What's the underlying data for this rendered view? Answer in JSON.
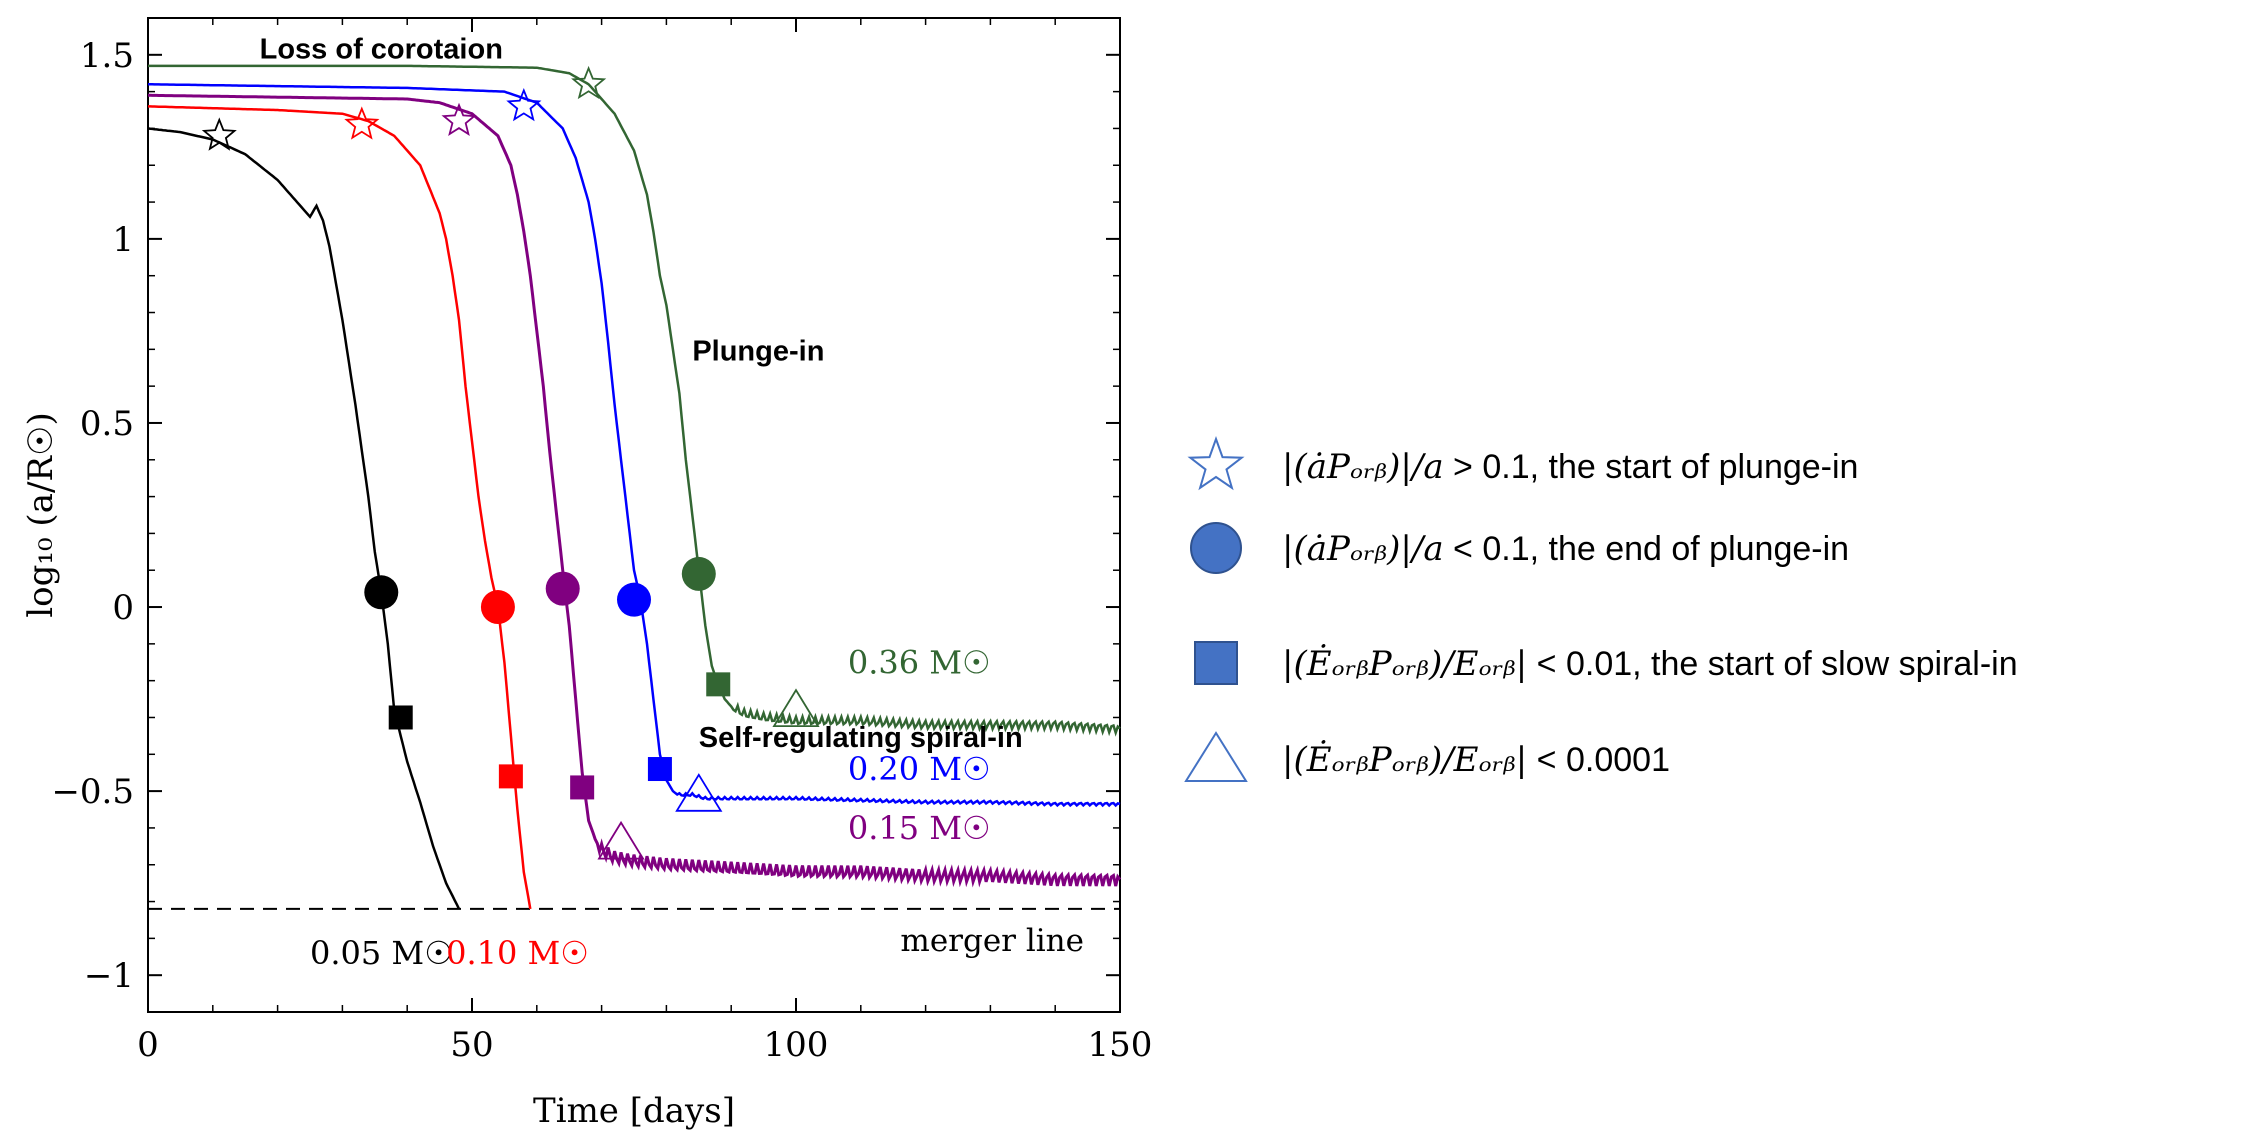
{
  "chart_data": {
    "type": "line",
    "xlabel": "Time [days]",
    "ylabel": "log₁₀ (a/R☉)",
    "xlim": [
      0,
      150
    ],
    "ylim": [
      -1.1,
      1.6
    ],
    "xticks": [
      {
        "v": 0,
        "label": "0"
      },
      {
        "v": 50,
        "label": "50"
      },
      {
        "v": 100,
        "label": "100"
      },
      {
        "v": 150,
        "label": "150"
      }
    ],
    "yticks": [
      {
        "v": 1.5,
        "label": "1.5"
      },
      {
        "v": 1,
        "label": "1"
      },
      {
        "v": 0.5,
        "label": "0.5"
      },
      {
        "v": 0,
        "label": "0"
      },
      {
        "v": -0.5,
        "label": "−0.5"
      },
      {
        "v": -1,
        "label": "−1"
      }
    ],
    "merger_line": {
      "y": -0.82,
      "label": "merger line"
    },
    "annotations": [
      {
        "text": "Loss of corotaion",
        "x": 36,
        "y": 1.49
      },
      {
        "text": "Plunge-in",
        "x": 84,
        "y": 0.67
      },
      {
        "text": "Self-regulating spiral-in",
        "x": 85,
        "y": -0.38
      }
    ],
    "series": [
      {
        "name": "0.05 M☉",
        "color": "#000000",
        "label_x": 25,
        "label_y": -0.97,
        "x": [
          0,
          5,
          10,
          15,
          20,
          24,
          25,
          26,
          27,
          28,
          30,
          32,
          34,
          35,
          36,
          37,
          38,
          40,
          42,
          44,
          46,
          48
        ],
        "y": [
          1.3,
          1.29,
          1.27,
          1.23,
          1.16,
          1.08,
          1.06,
          1.09,
          1.05,
          0.98,
          0.78,
          0.55,
          0.3,
          0.15,
          0.04,
          -0.1,
          -0.28,
          -0.42,
          -0.53,
          -0.65,
          -0.75,
          -0.82
        ],
        "star": [
          11,
          1.28
        ],
        "circle": [
          36,
          0.04
        ],
        "square": [
          39,
          -0.3
        ]
      },
      {
        "name": "0.10 M☉",
        "color": "#ff0000",
        "label_x": 46,
        "label_y": -0.97,
        "x": [
          0,
          10,
          20,
          30,
          34,
          38,
          42,
          45,
          46,
          47,
          48,
          49,
          50,
          51,
          52,
          53,
          54,
          55,
          56,
          57,
          58,
          59
        ],
        "y": [
          1.36,
          1.355,
          1.35,
          1.34,
          1.32,
          1.28,
          1.2,
          1.07,
          1.0,
          0.9,
          0.78,
          0.6,
          0.45,
          0.3,
          0.18,
          0.08,
          0.0,
          -0.15,
          -0.35,
          -0.55,
          -0.72,
          -0.82
        ],
        "star": [
          33,
          1.31
        ],
        "circle": [
          54,
          0.0
        ],
        "square": [
          56,
          -0.46
        ]
      },
      {
        "name": "0.15 M☉",
        "color": "#800080",
        "label_x": 108,
        "label_y": -0.63,
        "x": [
          0,
          20,
          40,
          45,
          50,
          54,
          56,
          57,
          58,
          59,
          60,
          61,
          62,
          63,
          64,
          65,
          66,
          67,
          68,
          69,
          70,
          72,
          75,
          80,
          90,
          100,
          110,
          120,
          130,
          140,
          150
        ],
        "y": [
          1.39,
          1.385,
          1.38,
          1.37,
          1.34,
          1.28,
          1.2,
          1.12,
          1.02,
          0.9,
          0.75,
          0.6,
          0.42,
          0.26,
          0.1,
          -0.05,
          -0.25,
          -0.45,
          -0.58,
          -0.63,
          -0.66,
          -0.68,
          -0.69,
          -0.7,
          -0.71,
          -0.72,
          -0.72,
          -0.73,
          -0.73,
          -0.74,
          -0.74
        ],
        "star": [
          48,
          1.32
        ],
        "circle": [
          64,
          0.05
        ],
        "square": [
          67,
          -0.49
        ],
        "triangle": [
          73,
          -0.64
        ]
      },
      {
        "name": "0.20 M☉",
        "color": "#0000ff",
        "label_x": 108,
        "label_y": -0.47,
        "x": [
          0,
          20,
          40,
          55,
          60,
          64,
          66,
          68,
          69,
          70,
          71,
          72,
          73,
          74,
          75,
          76,
          77,
          78,
          79,
          80,
          81,
          82,
          84,
          86,
          90,
          100,
          110,
          120,
          130,
          140,
          150
        ],
        "y": [
          1.42,
          1.415,
          1.41,
          1.4,
          1.37,
          1.3,
          1.22,
          1.1,
          1.0,
          0.88,
          0.72,
          0.55,
          0.4,
          0.25,
          0.1,
          0.02,
          -0.1,
          -0.25,
          -0.4,
          -0.47,
          -0.5,
          -0.51,
          -0.51,
          -0.52,
          -0.52,
          -0.52,
          -0.525,
          -0.53,
          -0.53,
          -0.535,
          -0.535
        ],
        "star": [
          58,
          1.36
        ],
        "circle": [
          75,
          0.02
        ],
        "square": [
          79,
          -0.44
        ],
        "triangle": [
          85,
          -0.51
        ]
      },
      {
        "name": "0.36 M☉",
        "color": "#336633",
        "label_x": 108,
        "label_y": -0.18,
        "x": [
          0,
          20,
          40,
          60,
          65,
          68,
          72,
          75,
          77,
          78,
          79,
          80,
          81,
          82,
          83,
          84,
          85,
          86,
          87,
          88,
          89,
          90,
          92,
          95,
          100,
          110,
          120,
          130,
          140,
          150
        ],
        "y": [
          1.47,
          1.47,
          1.47,
          1.465,
          1.45,
          1.42,
          1.34,
          1.24,
          1.12,
          1.02,
          0.9,
          0.82,
          0.7,
          0.58,
          0.4,
          0.25,
          0.1,
          -0.05,
          -0.16,
          -0.21,
          -0.25,
          -0.27,
          -0.29,
          -0.3,
          -0.31,
          -0.31,
          -0.32,
          -0.32,
          -0.32,
          -0.33
        ],
        "star": [
          68,
          1.42
        ],
        "circle": [
          85,
          0.09
        ],
        "square": [
          88,
          -0.21
        ],
        "triangle": [
          100,
          -0.28
        ]
      }
    ]
  },
  "legend": {
    "color": "#4472c4",
    "items": [
      {
        "marker": "star",
        "math": "|(ȧPₒᵣᵦ)|/a",
        "text": " > 0.1, the start of plunge-in"
      },
      {
        "marker": "circle",
        "math": "|(ȧPₒᵣᵦ)|/a",
        "text": " < 0.1, the end of plunge-in"
      },
      {
        "marker": "square",
        "math": "|(ĖₒᵣᵦPₒᵣᵦ)/Eₒᵣᵦ|",
        "text": " < 0.01, the start of slow spiral-in"
      },
      {
        "marker": "triangle",
        "math": "|(ĖₒᵣᵦPₒᵣᵦ)/Eₒᵣᵦ|",
        "text": " < 0.0001"
      }
    ]
  }
}
